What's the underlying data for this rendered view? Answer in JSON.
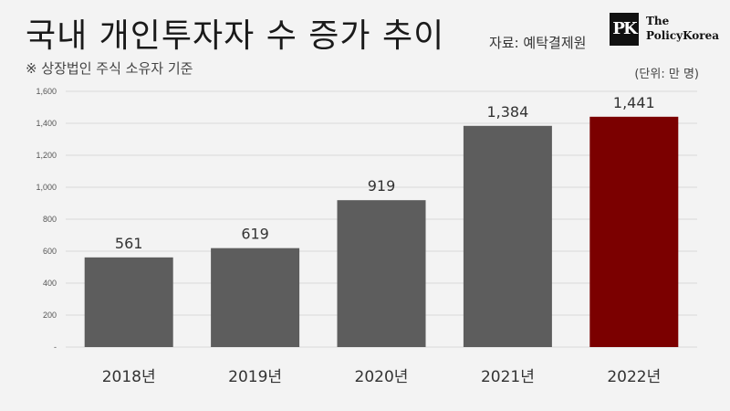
{
  "header": {
    "title": "국내 개인투자자 수 증가 추이",
    "source": "자료: 예탁결제원",
    "subtitle": "※ 상장법인 주식 소유자 기준",
    "unit": "(단위: 만 명)"
  },
  "logo": {
    "mark": "PK",
    "line1": "The",
    "line2": "PolicyKorea"
  },
  "colors": {
    "bar": "#5d5d5d",
    "highlight": "#7b0000",
    "grid": "#d9d9d9",
    "background": "#f3f3f3"
  },
  "chart_data": {
    "type": "bar",
    "categories": [
      "2018년",
      "2019년",
      "2020년",
      "2021년",
      "2022년"
    ],
    "values": [
      561,
      619,
      919,
      1384,
      1441
    ],
    "value_labels": [
      "561",
      "619",
      "919",
      "1,384",
      "1,441"
    ],
    "highlight_index": 4,
    "ylim": [
      0,
      1600
    ],
    "yticks": [
      0,
      200,
      400,
      600,
      800,
      1000,
      1200,
      1400,
      1600
    ],
    "ytick_labels": [
      "-",
      "200",
      "400",
      "600",
      "800",
      "1,000",
      "1,200",
      "1,400",
      "1,600"
    ],
    "grid": true,
    "legend": "none"
  }
}
